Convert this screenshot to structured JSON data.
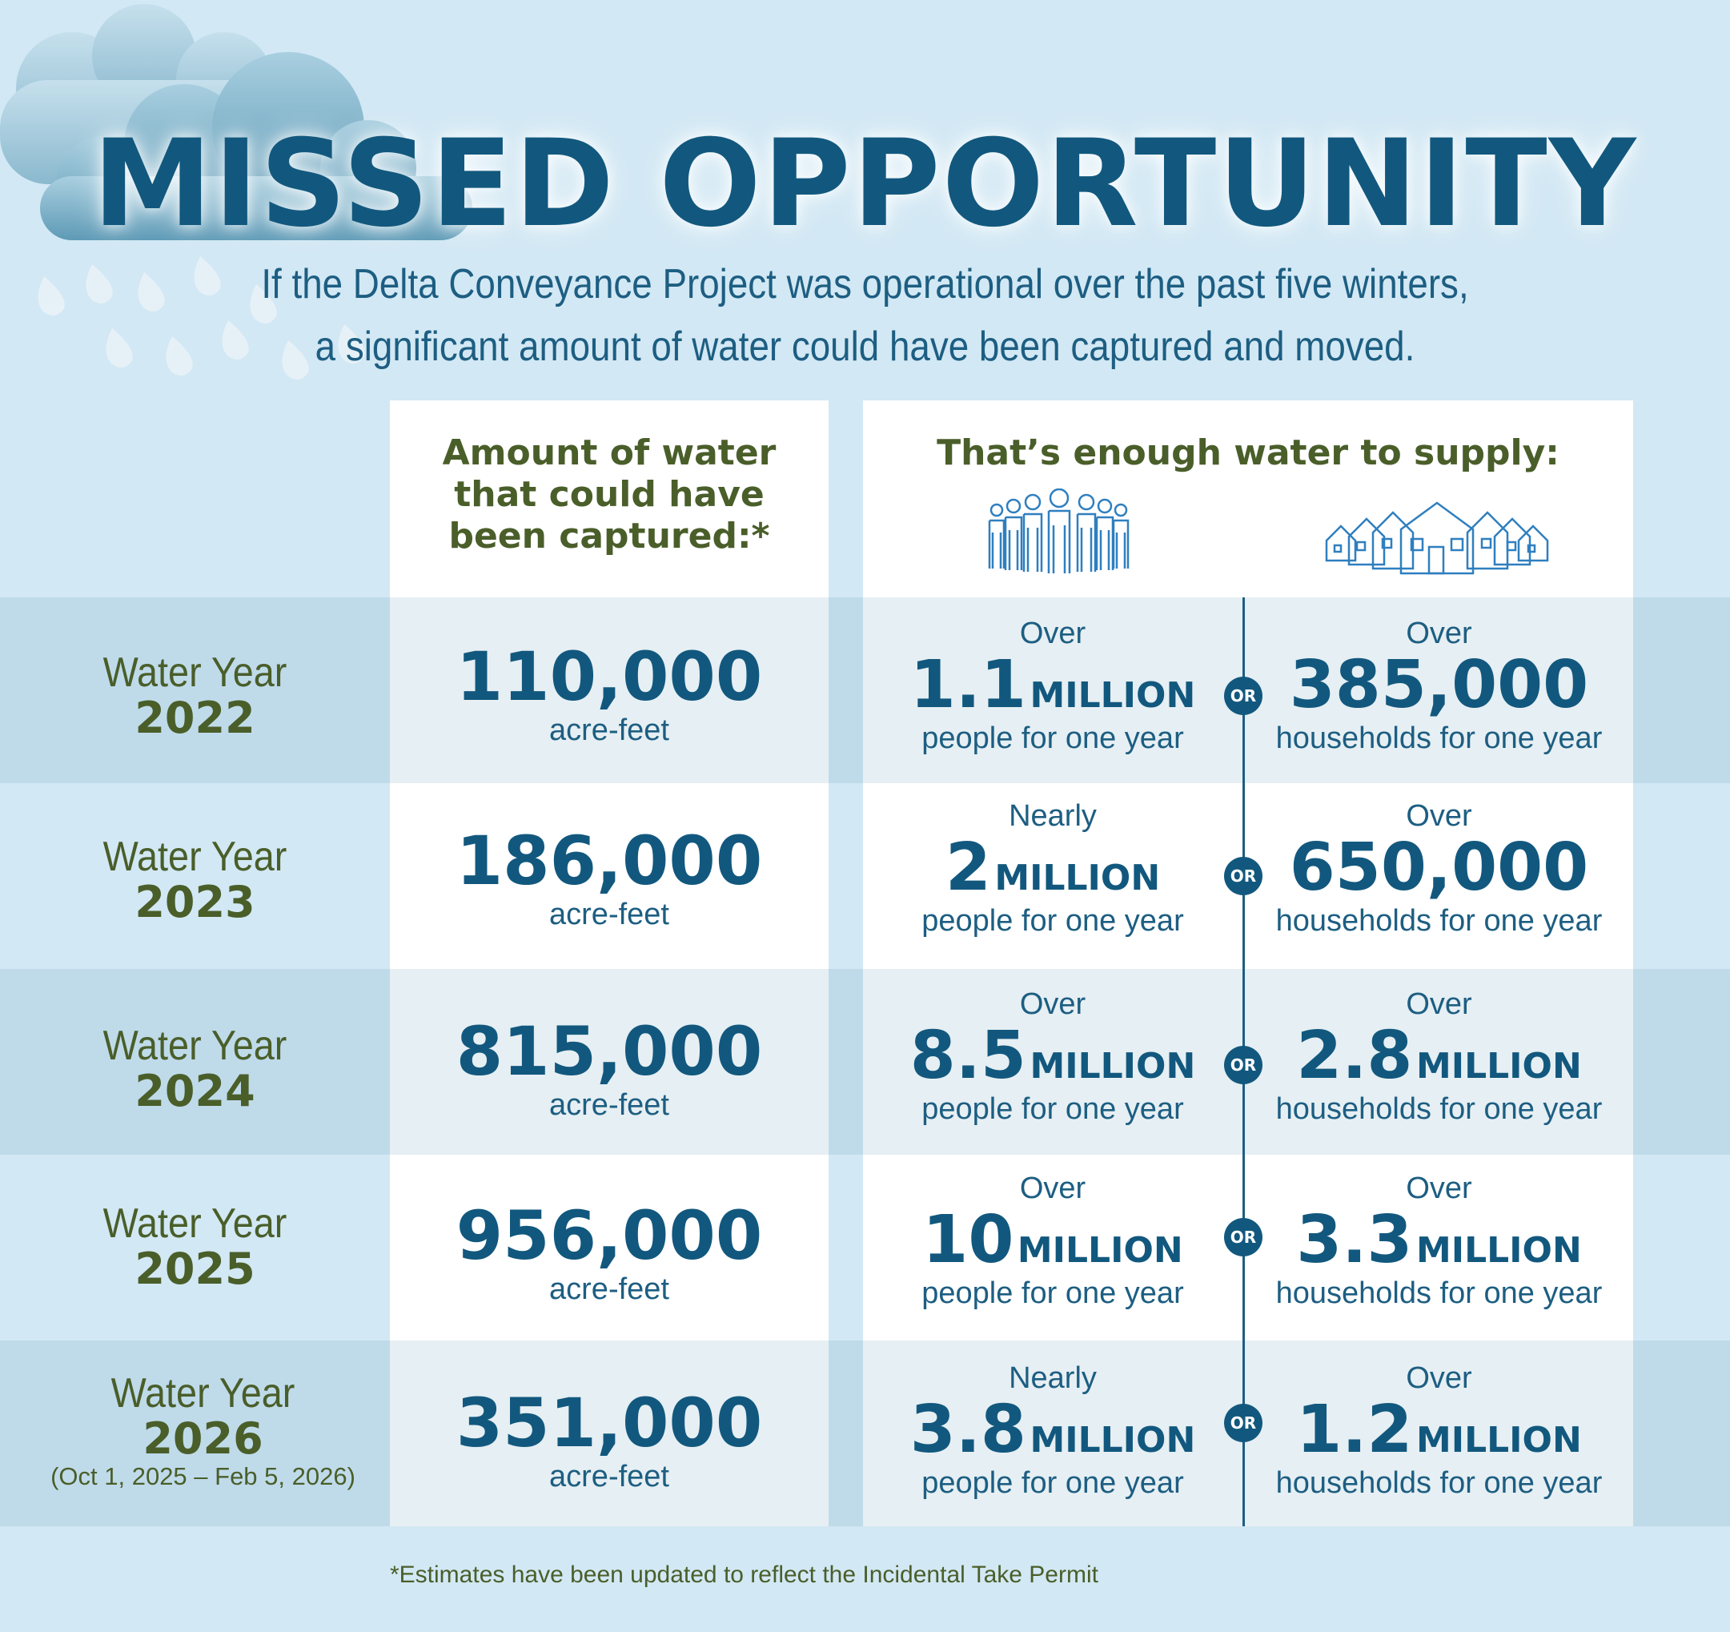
{
  "title": "MISSED OPPORTUNITY",
  "subtitle_line1": "If the Delta Conveyance Project was operational over the past five winters,",
  "subtitle_line2": "a significant amount of water could have been captured and moved.",
  "headers": {
    "amount_l1": "Amount of water",
    "amount_l2": "that could have",
    "amount_l3": "been captured:*",
    "supply": "That’s enough water to supply:"
  },
  "icons": {
    "people": "people-group-icon",
    "houses": "houses-icon",
    "clouds": "rain-cloud-icon"
  },
  "or_label": "OR",
  "rows": [
    {
      "year_label": "Water Year",
      "year": "2022",
      "range": "",
      "amount": "110,000",
      "amount_unit": "acre-feet",
      "people_qual": "Over",
      "people_num": "1.1",
      "people_mil": "MILLION",
      "people_desc": "people for one year",
      "house_qual": "Over",
      "house_num": "385,000",
      "house_mil": "",
      "house_desc": "households for one year"
    },
    {
      "year_label": "Water Year",
      "year": "2023",
      "range": "",
      "amount": "186,000",
      "amount_unit": "acre-feet",
      "people_qual": "Nearly",
      "people_num": "2",
      "people_mil": "MILLION",
      "people_desc": "people for one year",
      "house_qual": "Over",
      "house_num": "650,000",
      "house_mil": "",
      "house_desc": "households for one year"
    },
    {
      "year_label": "Water Year",
      "year": "2024",
      "range": "",
      "amount": "815,000",
      "amount_unit": "acre-feet",
      "people_qual": "Over",
      "people_num": "8.5",
      "people_mil": "MILLION",
      "people_desc": "people for one year",
      "house_qual": "Over",
      "house_num": "2.8",
      "house_mil": "MILLION",
      "house_desc": "households for one year"
    },
    {
      "year_label": "Water Year",
      "year": "2025",
      "range": "",
      "amount": "956,000",
      "amount_unit": "acre-feet",
      "people_qual": "Over",
      "people_num": "10",
      "people_mil": "MILLION",
      "people_desc": "people for one year",
      "house_qual": "Over",
      "house_num": "3.3",
      "house_mil": "MILLION",
      "house_desc": "households for one year"
    },
    {
      "year_label": "Water Year",
      "year": "2026",
      "range": "(Oct 1, 2025 – Feb 5, 2026)",
      "amount": "351,000",
      "amount_unit": "acre-feet",
      "people_qual": "Nearly",
      "people_num": "3.8",
      "people_mil": "MILLION",
      "people_desc": "people for one year",
      "house_qual": "Over",
      "house_num": "1.2",
      "house_mil": "MILLION",
      "house_desc": "households for one year"
    }
  ],
  "footnote": "*Estimates have been updated to reflect the Incidental Take Permit",
  "colors": {
    "background": "#d2e8f4",
    "title": "#12587e",
    "olive": "#4a5e2a",
    "band": "#bfdbea",
    "cell_light": "#e6eff3"
  }
}
